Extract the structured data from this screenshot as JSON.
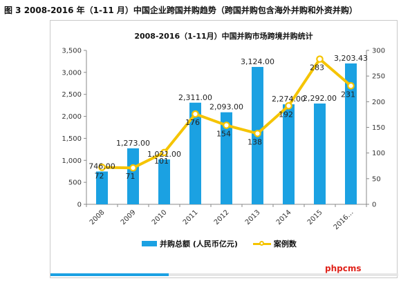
{
  "caption": "图 3 2008-2016 年（1-11 月）中国企业跨国并购趋势（跨国并购包含海外并购和外资并购）",
  "watermark": "phpcms",
  "progress_fraction": 0.34,
  "colors": {
    "bar": "#1ba1e2",
    "line": "#f5c400",
    "frame": "#c9c9c9"
  },
  "chart_data": {
    "type": "bar",
    "title": "2008-2016（1-11月）中国并购市场跨境并购统计",
    "categories": [
      "2008",
      "2009",
      "2010",
      "2011",
      "2012",
      "2013",
      "2014",
      "2015",
      "2016…"
    ],
    "series": [
      {
        "name": "并购总额 (人民币亿元)",
        "type": "bar",
        "axis": "left",
        "values": [
          746.0,
          1273.0,
          1021.0,
          2311.0,
          2093.0,
          3124.0,
          2274.0,
          2292.0,
          3203.43
        ],
        "labels": [
          "746.00",
          "1,273.00",
          "1,021.00",
          "2,311.00",
          "2,093.00",
          "3,124.00",
          "2,274.00",
          "2,292.00",
          "3,203.43"
        ]
      },
      {
        "name": "案例数",
        "type": "line",
        "axis": "right",
        "values": [
          72,
          71,
          101,
          176,
          154,
          138,
          192,
          283,
          231
        ],
        "labels": [
          "72",
          "71",
          "101",
          "176",
          "154",
          "138",
          "192",
          "283",
          "231"
        ]
      }
    ],
    "y_left": {
      "range": [
        0,
        3500
      ],
      "ticks": [
        "0",
        "500",
        "1,000",
        "1,500",
        "2,000",
        "2,500",
        "3,000",
        "3,500"
      ]
    },
    "y_right": {
      "range": [
        0,
        300
      ],
      "ticks": [
        "0",
        "50",
        "100",
        "150",
        "200",
        "250",
        "300"
      ]
    },
    "grid": false,
    "legend_position": "bottom"
  }
}
